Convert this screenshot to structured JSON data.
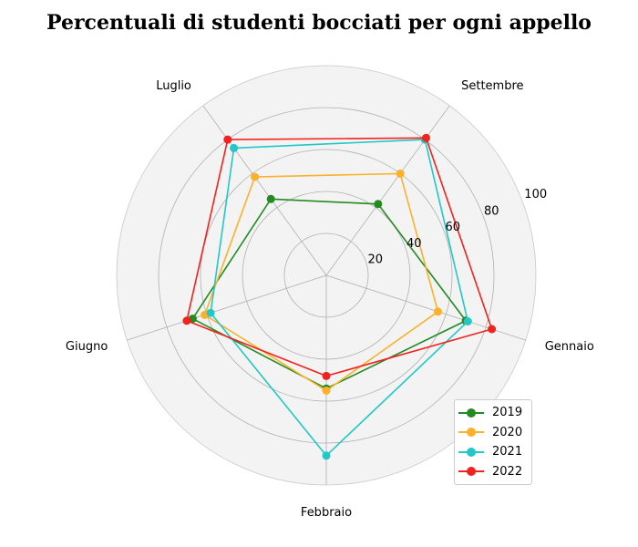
{
  "chart_data": {
    "type": "radar",
    "title": "Percentuali di studenti bocciati per ogni appello",
    "categories": [
      "Gennaio",
      "Settembre",
      "Luglio",
      "Giugno",
      "Febbraio"
    ],
    "rlim": [
      0,
      100
    ],
    "rticks": [
      20,
      40,
      60,
      80,
      100
    ],
    "rtick_labels": [
      "20",
      "40",
      "60",
      "80",
      "100"
    ],
    "grid": true,
    "legend_position": "lower-right",
    "series": [
      {
        "name": "2019",
        "color": "#228b22",
        "values": [
          70,
          42,
          45,
          67,
          54
        ]
      },
      {
        "name": "2020",
        "color": "#fbb22a",
        "values": [
          56,
          60,
          58,
          61,
          55
        ]
      },
      {
        "name": "2021",
        "color": "#22c7c7",
        "values": [
          71,
          80,
          75,
          58,
          86
        ]
      },
      {
        "name": "2022",
        "color": "#f2221f",
        "values": [
          83,
          81,
          80,
          70,
          48
        ]
      }
    ]
  }
}
